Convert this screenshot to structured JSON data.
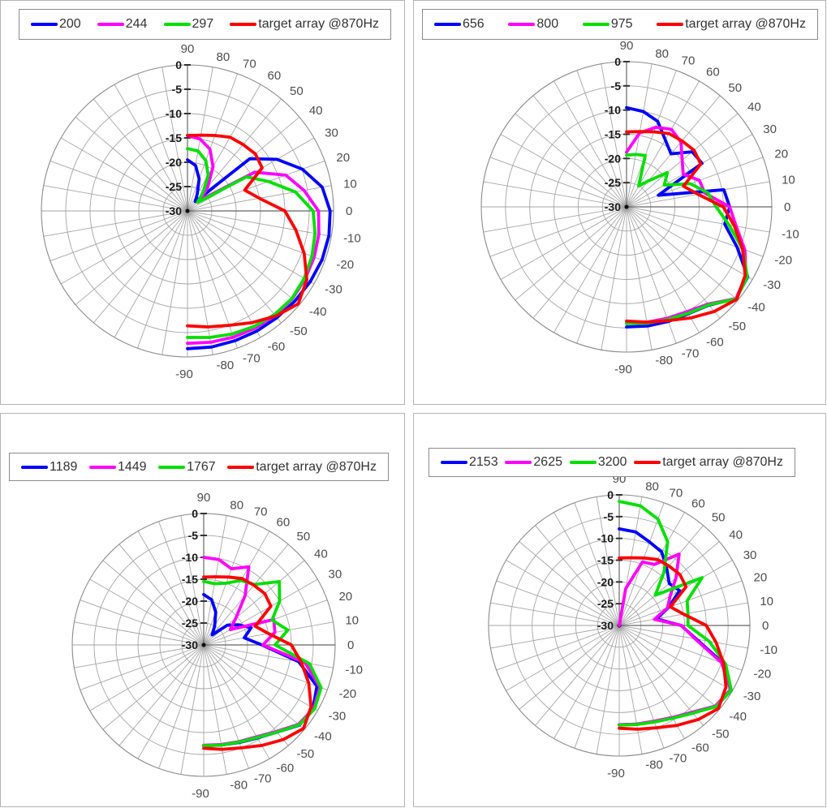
{
  "page": {
    "background": "#ffffff"
  },
  "colors": {
    "blue": "#0000ff",
    "magenta": "#ff00ff",
    "green": "#00e000",
    "red": "#ff0000",
    "grid": "#a6a6a6",
    "axis": "#666666",
    "angle_label": "#4d4d4d",
    "radial_label": "#1a1a1a"
  },
  "chart_data": [
    {
      "id": "top-left",
      "type": "line",
      "projection": "polar",
      "title": "",
      "legend_position": "top",
      "grid": true,
      "radial_axis": {
        "unit": "dB",
        "min": -30,
        "max": 0,
        "tick_labels": [
          "0",
          "-5",
          "-10",
          "-15",
          "-20",
          "-25",
          "-30"
        ]
      },
      "angle_tick_labels": [
        "90",
        "80",
        "70",
        "60",
        "50",
        "40",
        "30",
        "20",
        "10",
        "0",
        "-10",
        "-20",
        "-30",
        "-40",
        "-50",
        "-60",
        "-70",
        "-80",
        "-90"
      ],
      "angles_deg": [
        90,
        80,
        70,
        60,
        50,
        40,
        30,
        20,
        10,
        0,
        -10,
        -20,
        -30,
        -40,
        -50,
        -60,
        -70,
        -80,
        -90
      ],
      "series": [
        {
          "name": "200",
          "color": "#0000ff",
          "values": [
            -19.5,
            -20.5,
            -23.0,
            -26.0,
            -27.5,
            -13.3,
            -8.8,
            -4.9,
            -1.9,
            -0.7,
            -0.5,
            -0.6,
            -0.9,
            -1.2,
            -1.4,
            -1.5,
            -1.6,
            -1.6,
            -1.7
          ]
        },
        {
          "name": "244",
          "color": "#ff00ff",
          "values": [
            -14.5,
            -15.0,
            -16.5,
            -19.5,
            -23.5,
            -26.5,
            -14.1,
            -8.5,
            -5.7,
            -3.1,
            -2.6,
            -2.3,
            -2.1,
            -1.9,
            -2.0,
            -2.2,
            -2.4,
            -2.6,
            -2.8
          ]
        },
        {
          "name": "297",
          "color": "#00e000",
          "values": [
            -17.2,
            -17.5,
            -19.0,
            -21.5,
            -25.0,
            -27.3,
            -16.0,
            -12.3,
            -7.5,
            -4.2,
            -3.4,
            -2.8,
            -2.3,
            -2.0,
            -2.2,
            -2.6,
            -3.1,
            -3.6,
            -4.0
          ]
        },
        {
          "name": "target array @870Hz",
          "color": "#ff0000",
          "values": [
            -14.5,
            -14.2,
            -13.5,
            -12.5,
            -12.2,
            -11.8,
            -12.3,
            -17.5,
            -15.0,
            -10.0,
            -7.4,
            -4.5,
            -1.7,
            -0.3,
            -1.8,
            -3.5,
            -5.0,
            -5.8,
            -6.4
          ]
        }
      ]
    },
    {
      "id": "top-right",
      "type": "line",
      "projection": "polar",
      "title": "",
      "legend_position": "top",
      "grid": true,
      "radial_axis": {
        "unit": "dB",
        "min": -30,
        "max": 0,
        "tick_labels": [
          "0",
          "-5",
          "-10",
          "-15",
          "-20",
          "-25",
          "-30"
        ]
      },
      "angle_tick_labels": [
        "90",
        "80",
        "70",
        "60",
        "50",
        "40",
        "30",
        "20",
        "10",
        "0",
        "-10",
        "-20",
        "-30",
        "-40",
        "-50",
        "-60",
        "-70",
        "-80",
        "-90"
      ],
      "angles_deg": [
        90,
        80,
        70,
        60,
        50,
        40,
        30,
        20,
        10,
        0,
        -10,
        -20,
        -30,
        -40,
        -50,
        -60,
        -70,
        -80,
        -90
      ],
      "series": [
        {
          "name": "656",
          "color": "#0000ff",
          "values": [
            -9.5,
            -10.0,
            -11.2,
            -14.0,
            -15.7,
            -12.3,
            -12.0,
            -23.0,
            -9.6,
            -8.7,
            -9.4,
            -5.7,
            -1.1,
            -0.5,
            -3.5,
            -4.5,
            -4.8,
            -5.0,
            -5.2
          ]
        },
        {
          "name": "800",
          "color": "#ff00ff",
          "values": [
            -18.7,
            -14.5,
            -12.5,
            -11.5,
            -12.5,
            -15.0,
            -16.5,
            -14.0,
            -13.6,
            -8.7,
            -7.0,
            -4.0,
            -1.5,
            -0.5,
            -3.8,
            -5.0,
            -5.5,
            -5.8,
            -6.0
          ]
        },
        {
          "name": "975",
          "color": "#00e000",
          "values": [
            -19.3,
            -19.0,
            -18.7,
            -25.0,
            -23.0,
            -19.0,
            -21.0,
            -16.0,
            -13.0,
            -11.5,
            -8.5,
            -4.5,
            -1.2,
            -0.4,
            -3.6,
            -4.6,
            -5.2,
            -5.6,
            -5.9
          ]
        },
        {
          "name": "target array @870Hz",
          "color": "#ff0000",
          "values": [
            -14.5,
            -14.2,
            -13.5,
            -12.5,
            -12.2,
            -11.8,
            -12.3,
            -17.5,
            -15.0,
            -10.0,
            -7.4,
            -4.5,
            -1.7,
            -0.3,
            -1.8,
            -3.5,
            -5.0,
            -5.8,
            -6.4
          ]
        }
      ]
    },
    {
      "id": "bottom-left",
      "type": "line",
      "projection": "polar",
      "title": "",
      "legend_position": "top",
      "grid": true,
      "radial_axis": {
        "unit": "dB",
        "min": -30,
        "max": 0,
        "tick_labels": [
          "0",
          "-5",
          "-10",
          "-15",
          "-20",
          "-25",
          "-30"
        ]
      },
      "angle_tick_labels": [
        "90",
        "80",
        "70",
        "60",
        "50",
        "40",
        "30",
        "20",
        "10",
        "0",
        "-10",
        "-20",
        "-30",
        "-40",
        "-50",
        "-60",
        "-70",
        "-80",
        "-90"
      ],
      "angles_deg": [
        90,
        80,
        70,
        60,
        50,
        40,
        30,
        20,
        10,
        0,
        -10,
        -20,
        -30,
        -40,
        -50,
        -60,
        -70,
        -80,
        -90
      ],
      "series": [
        {
          "name": "1189",
          "color": "#0000ff",
          "values": [
            -18.5,
            -19.5,
            -22.0,
            -25.0,
            -27.0,
            -23.0,
            -20.8,
            -18.5,
            -20.6,
            -16.7,
            -8.0,
            -2.5,
            -1.2,
            -1.5,
            -4.0,
            -5.5,
            -6.3,
            -6.8,
            -7.0
          ]
        },
        {
          "name": "1449",
          "color": "#ff00ff",
          "values": [
            -10.0,
            -10.2,
            -11.5,
            -9.4,
            -15.3,
            -20.4,
            -23.0,
            -13.0,
            -13.5,
            -16.5,
            -6.5,
            -1.8,
            -1.0,
            -1.8,
            -4.2,
            -5.8,
            -6.5,
            -6.9,
            -7.1
          ]
        },
        {
          "name": "1767",
          "color": "#00e000",
          "values": [
            -15.5,
            -15.8,
            -15.0,
            -13.0,
            -12.0,
            -7.5,
            -10.0,
            -13.4,
            -10.5,
            -13.7,
            -5.5,
            -1.5,
            -0.8,
            -1.6,
            -4.0,
            -5.6,
            -6.4,
            -6.8,
            -7.0
          ]
        },
        {
          "name": "target array @870Hz",
          "color": "#ff0000",
          "values": [
            -14.5,
            -14.2,
            -13.5,
            -12.5,
            -12.2,
            -11.8,
            -12.3,
            -17.5,
            -15.0,
            -10.0,
            -7.4,
            -4.5,
            -1.7,
            -0.3,
            -1.8,
            -3.5,
            -5.0,
            -5.8,
            -6.4
          ]
        }
      ]
    },
    {
      "id": "bottom-right",
      "type": "line",
      "projection": "polar",
      "title": "",
      "legend_position": "top",
      "grid": true,
      "radial_axis": {
        "unit": "dB",
        "min": -30,
        "max": 0,
        "tick_labels": [
          "0",
          "-5",
          "-10",
          "-15",
          "-20",
          "-25",
          "-30"
        ]
      },
      "angle_tick_labels": [
        "90",
        "80",
        "70",
        "60",
        "50",
        "40",
        "30",
        "20",
        "10",
        "0",
        "-10",
        "-20",
        "-30",
        "-40",
        "-50",
        "-60",
        "-70",
        "-80",
        "-90"
      ],
      "angles_deg": [
        90,
        80,
        70,
        60,
        50,
        40,
        30,
        20,
        10,
        0,
        -10,
        -20,
        -30,
        -40,
        -50,
        -60,
        -70,
        -80,
        -90
      ],
      "series": [
        {
          "name": "2153",
          "color": "#0000ff",
          "values": [
            -7.8,
            -8.2,
            -9.6,
            -10.5,
            -13.0,
            -15.0,
            -14.0,
            -18.0,
            -21.3,
            -15.8,
            -12.0,
            -4.5,
            -0.3,
            -1.0,
            -3.8,
            -5.5,
            -6.5,
            -7.0,
            -7.2
          ]
        },
        {
          "name": "2625",
          "color": "#ff00ff",
          "values": [
            -30.0,
            -21.4,
            -14.5,
            -13.8,
            -8.6,
            -13.0,
            -16.5,
            -18.2,
            -21.8,
            -15.7,
            -12.3,
            -5.0,
            -0.5,
            -1.2,
            -4.0,
            -5.6,
            -6.6,
            -7.0,
            -7.2
          ]
        },
        {
          "name": "3200",
          "color": "#00e000",
          "values": [
            -1.5,
            -2.1,
            -4.0,
            -7.8,
            -14.0,
            -19.2,
            -8.0,
            -13.4,
            -14.0,
            -14.2,
            -9.0,
            -4.0,
            -0.3,
            -1.0,
            -3.7,
            -5.4,
            -6.4,
            -6.9,
            -7.1
          ]
        },
        {
          "name": "target array @870Hz",
          "color": "#ff0000",
          "values": [
            -14.5,
            -14.2,
            -13.5,
            -12.5,
            -12.2,
            -11.8,
            -12.3,
            -17.5,
            -15.0,
            -10.0,
            -7.4,
            -4.5,
            -1.7,
            -0.3,
            -1.8,
            -3.5,
            -5.0,
            -5.8,
            -6.4
          ]
        }
      ]
    }
  ]
}
